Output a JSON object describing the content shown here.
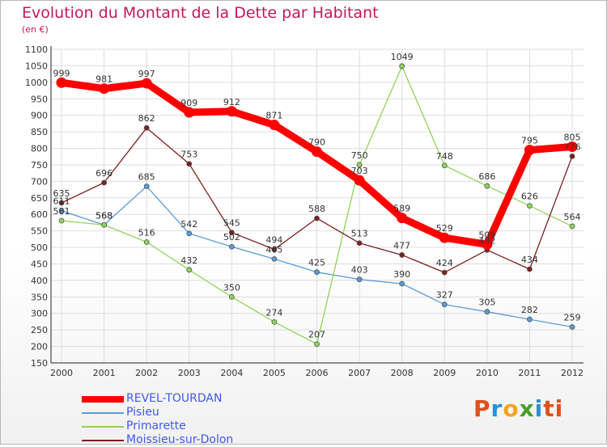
{
  "chart_data": {
    "type": "line",
    "title": "Evolution du Montant de la Dette par Habitant",
    "subtitle": "(en €)",
    "x": [
      "2000",
      "2001",
      "2002",
      "2003",
      "2004",
      "2005",
      "2006",
      "2007",
      "2008",
      "2009",
      "2010",
      "2011",
      "2012"
    ],
    "ylim": [
      150,
      1100
    ],
    "yticks": [
      150,
      200,
      250,
      300,
      350,
      400,
      450,
      500,
      550,
      600,
      650,
      700,
      750,
      800,
      850,
      900,
      950,
      1000,
      1050,
      1100
    ],
    "grid": true,
    "legend_position": "bottom-left",
    "series": [
      {
        "name": "REVEL-TOURDAN",
        "color": "#ff0000",
        "values": [
          999,
          981,
          997,
          909,
          912,
          871,
          790,
          703,
          589,
          529,
          509,
          795,
          805
        ]
      },
      {
        "name": "Pisieu",
        "color": "#5b9bd5",
        "values": [
          611,
          568,
          685,
          542,
          502,
          465,
          425,
          403,
          390,
          327,
          305,
          282,
          259
        ]
      },
      {
        "name": "Primarette",
        "color": "#8fd45a",
        "values": [
          581,
          568,
          516,
          432,
          350,
          274,
          207,
          750,
          1049,
          748,
          686,
          626,
          564
        ]
      },
      {
        "name": "Moissieu-sur-Dolon",
        "color": "#7a1f1f",
        "values": [
          635,
          696,
          862,
          753,
          545,
          494,
          588,
          513,
          477,
          424,
          492,
          434,
          776
        ]
      }
    ]
  },
  "brand": {
    "letters": [
      "P",
      "r",
      "o",
      "x",
      "i",
      "ti"
    ]
  }
}
